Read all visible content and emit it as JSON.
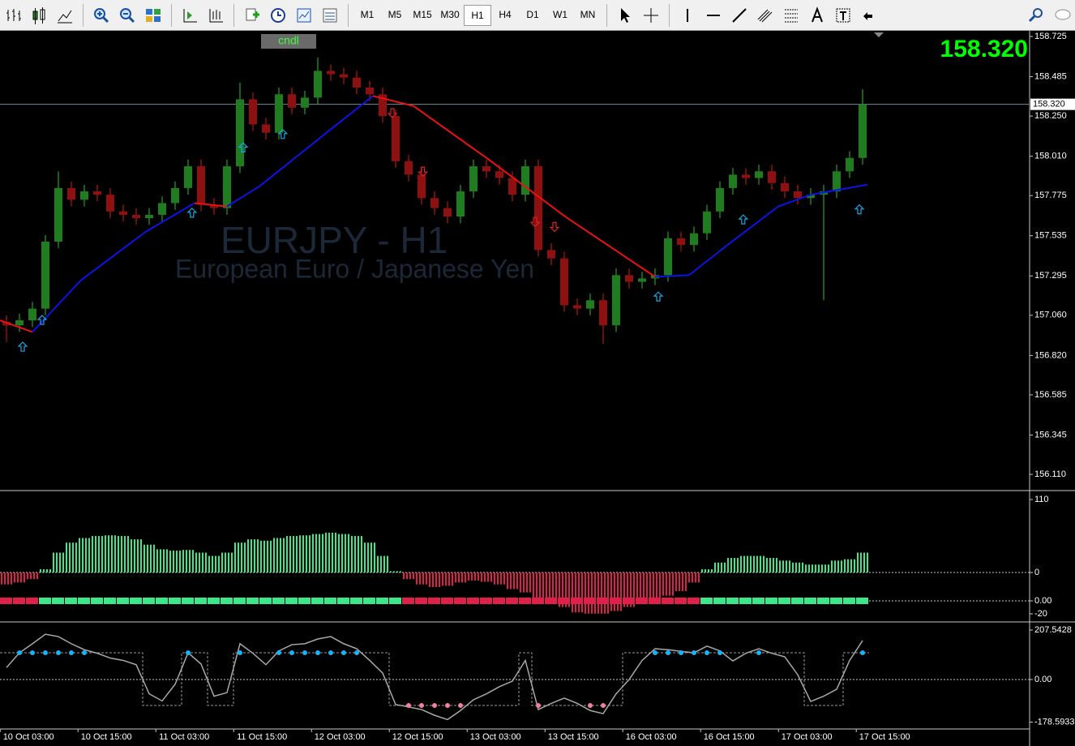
{
  "toolbar": {
    "timeframes": [
      "M1",
      "M5",
      "M15",
      "M30",
      "H1",
      "H4",
      "D1",
      "W1",
      "MN"
    ]
  },
  "chart_data": [
    {
      "type": "candlestick",
      "title": "EURJPY - H1",
      "subtitle": "European Euro / Japanese Yen",
      "label": "cndl",
      "open": [
        157.02,
        157.0,
        157.03,
        157.1,
        157.5,
        157.82,
        157.75,
        157.8,
        157.78,
        157.68,
        157.66,
        157.64,
        157.66,
        157.73,
        157.82,
        157.95,
        157.72,
        157.7,
        157.95,
        158.35,
        158.2,
        158.15,
        158.38,
        158.3,
        158.36,
        158.52,
        158.5,
        158.48,
        158.42,
        158.38,
        158.25,
        157.98,
        157.9,
        157.76,
        157.7,
        157.65,
        157.8,
        157.95,
        157.92,
        157.88,
        157.78,
        157.95,
        157.45,
        157.4,
        157.12,
        157.1,
        157.15,
        157.0,
        157.3,
        157.26,
        157.28,
        157.3,
        157.52,
        157.48,
        157.55,
        157.68,
        157.82,
        157.9,
        157.88,
        157.92,
        157.85,
        157.8,
        157.76,
        157.78,
        157.8,
        157.92,
        158.0
      ],
      "high": [
        157.06,
        157.07,
        157.14,
        157.54,
        157.92,
        157.86,
        157.84,
        157.84,
        157.82,
        157.72,
        157.7,
        157.7,
        157.77,
        157.86,
        157.99,
        157.99,
        157.76,
        157.99,
        158.45,
        158.39,
        158.24,
        158.42,
        158.42,
        158.4,
        158.6,
        158.56,
        158.54,
        158.52,
        158.46,
        158.42,
        158.29,
        158.02,
        157.94,
        157.8,
        157.74,
        157.84,
        157.99,
        157.99,
        157.96,
        157.92,
        157.99,
        157.99,
        157.49,
        157.44,
        157.16,
        157.19,
        157.19,
        157.34,
        157.34,
        157.32,
        157.34,
        157.56,
        157.56,
        157.59,
        157.72,
        157.86,
        157.94,
        157.94,
        157.96,
        157.96,
        157.89,
        157.84,
        157.82,
        157.84,
        157.96,
        158.04,
        158.41
      ],
      "low": [
        156.9,
        156.96,
        156.99,
        157.06,
        157.46,
        157.71,
        157.71,
        157.74,
        157.64,
        157.62,
        157.6,
        157.6,
        157.62,
        157.69,
        157.78,
        157.68,
        157.66,
        157.66,
        157.91,
        158.16,
        158.11,
        158.11,
        158.26,
        158.26,
        158.32,
        158.46,
        158.44,
        158.38,
        158.34,
        158.21,
        157.94,
        157.86,
        157.72,
        157.66,
        157.61,
        157.61,
        157.76,
        157.88,
        157.84,
        157.74,
        157.74,
        157.41,
        157.36,
        157.08,
        157.06,
        157.06,
        156.89,
        156.96,
        157.22,
        157.22,
        157.24,
        157.26,
        157.44,
        157.44,
        157.51,
        157.64,
        157.78,
        157.84,
        157.84,
        157.81,
        157.76,
        157.72,
        157.72,
        157.15,
        157.76,
        157.88,
        157.96
      ],
      "close": [
        157.0,
        157.03,
        157.1,
        157.5,
        157.82,
        157.75,
        157.8,
        157.78,
        157.68,
        157.66,
        157.64,
        157.66,
        157.73,
        157.82,
        157.95,
        157.72,
        157.7,
        157.95,
        158.35,
        158.2,
        158.15,
        158.38,
        158.3,
        158.36,
        158.52,
        158.5,
        158.48,
        158.42,
        158.38,
        158.25,
        157.98,
        157.9,
        157.76,
        157.7,
        157.65,
        157.8,
        157.95,
        157.92,
        157.88,
        157.78,
        157.95,
        157.45,
        157.4,
        157.12,
        157.1,
        157.15,
        157.0,
        157.3,
        157.26,
        157.28,
        157.3,
        157.52,
        157.48,
        157.55,
        157.68,
        157.82,
        157.9,
        157.88,
        157.92,
        157.85,
        157.8,
        157.76,
        157.78,
        157.8,
        157.92,
        158.0,
        158.32
      ],
      "colors": {
        "up": "#1f7d1f",
        "down": "#8e1010"
      },
      "xlim": [
        -0.5,
        78.875
      ],
      "ylim": [
        156.018,
        158.759
      ],
      "yticks": [
        158.725,
        158.485,
        {
          "value": 158.25,
          "label": "158.250"
        },
        {
          "value": 158.01,
          "label": "158.010"
        },
        157.775,
        157.535,
        157.295,
        {
          "value": 157.06,
          "label": "157.060"
        },
        {
          "value": 156.82,
          "label": "156.820"
        },
        156.585,
        156.345,
        {
          "value": 156.11,
          "label": "156.110"
        }
      ],
      "current_price": {
        "value": 158.32,
        "label": "158.320"
      },
      "price_color": "#00ff00",
      "ma": {
        "x": [
          -0.5,
          2,
          5.75,
          10.75,
          14.5,
          17,
          19.5,
          24.5,
          28.25,
          31.375,
          37,
          43.25,
          50,
          52.625,
          55.75,
          59.5,
          62,
          66.375
        ],
        "values": [
          157.03,
          156.96,
          157.27,
          157.56,
          157.73,
          157.71,
          157.83,
          158.14,
          158.37,
          158.31,
          158.0,
          157.64,
          157.29,
          157.3,
          157.49,
          157.71,
          157.78,
          157.84
        ],
        "up_color": "#0a14e6",
        "down_color": "#ee1111"
      },
      "signals": {
        "up": {
          "x": [
            1.25,
            2.75,
            14.3,
            18.25,
            21.3,
            50.25,
            56.8,
            65.75
          ],
          "values": [
            156.87,
            157.03,
            157.67,
            158.06,
            158.14,
            157.17,
            157.63,
            157.69
          ],
          "color": "#1aa6e0"
        },
        "down": {
          "x": [
            29.75,
            32.1,
            40.75,
            42.25
          ],
          "values": [
            158.27,
            157.92,
            157.62,
            157.59
          ],
          "color": "#e02020"
        }
      }
    },
    {
      "type": "bar",
      "values": [
        -18,
        -15,
        -10,
        5,
        30,
        45,
        52,
        55,
        56,
        55,
        50,
        42,
        35,
        33,
        34,
        30,
        25,
        30,
        45,
        50,
        48,
        52,
        55,
        56,
        58,
        60,
        58,
        55,
        45,
        25,
        2,
        -10,
        -18,
        -22,
        -20,
        -15,
        -12,
        -14,
        -18,
        -25,
        -30,
        -38,
        -45,
        -52,
        -60,
        -62,
        -62,
        -58,
        -52,
        -45,
        -40,
        -35,
        -28,
        -15,
        5,
        15,
        22,
        25,
        25,
        22,
        18,
        15,
        12,
        12,
        18,
        20,
        30
      ],
      "colors": {
        "up": "#3de88a",
        "down": "#e0204a"
      },
      "xlim": [
        -0.5,
        78.875
      ],
      "ylim": [
        -72,
        121
      ],
      "yticks": [
        110,
        0
      ],
      "y2lim": [
        -30,
        167.5
      ],
      "y2ticks": [
        {
          "value": 0,
          "label": "0.00"
        },
        -20
      ],
      "zero_line": true
    },
    {
      "type": "line",
      "values": [
        50,
        112,
        150,
        190,
        180,
        150,
        125,
        110,
        90,
        80,
        62,
        -60,
        -90,
        -20,
        112,
        65,
        -70,
        -55,
        150,
        110,
        62,
        120,
        146,
        150,
        170,
        180,
        150,
        129,
        80,
        27,
        -105,
        -115,
        -126,
        -150,
        -168,
        -130,
        -85,
        -60,
        -30,
        -7,
        80,
        -126,
        -100,
        -78,
        -100,
        -130,
        -143,
        -60,
        0,
        80,
        129,
        125,
        118,
        112,
        140,
        120,
        78,
        110,
        129,
        110,
        95,
        20,
        -92,
        -70,
        -41,
        80,
        163
      ],
      "color": "#a8a8a8",
      "levels": [
        112,
        -109
      ],
      "dot_colors": {
        "up": "#1ab2ff",
        "down": "#f080a8"
      },
      "xlim": [
        -0.5,
        78.875
      ],
      "ylim": [
        -204,
        238
      ],
      "yticks": [
        207.5428,
        {
          "value": 0,
          "label": "0.00"
        },
        -178.5933
      ],
      "zero_line": true,
      "xticks": [
        {
          "value": 1.7,
          "label": "10 Oct 03:00"
        },
        {
          "value": 7.7,
          "label": "10 Oct 15:00"
        },
        {
          "value": 13.7,
          "label": "11 Oct 03:00"
        },
        {
          "value": 19.7,
          "label": "11 Oct 15:00"
        },
        {
          "value": 25.7,
          "label": "12 Oct 03:00"
        },
        {
          "value": 31.7,
          "label": "12 Oct 15:00"
        },
        {
          "value": 37.7,
          "label": "13 Oct 03:00"
        },
        {
          "value": 43.7,
          "label": "13 Oct 15:00"
        },
        {
          "value": 49.7,
          "label": "16 Oct 03:00"
        },
        {
          "value": 55.7,
          "label": "16 Oct 15:00"
        },
        {
          "value": 61.7,
          "label": "17 Oct 03:00"
        },
        {
          "value": 67.7,
          "label": "17 Oct 15:00"
        }
      ]
    }
  ]
}
